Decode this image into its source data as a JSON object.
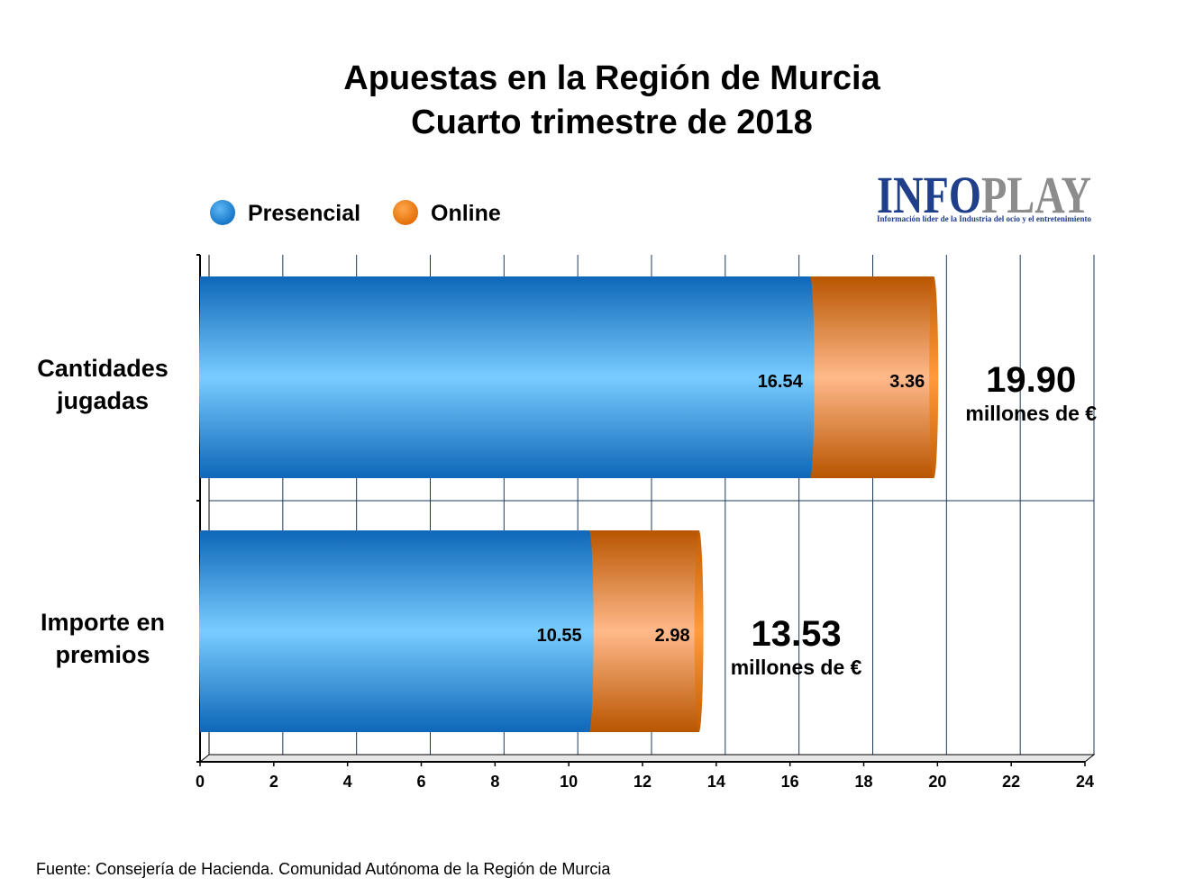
{
  "chart_data": {
    "type": "bar",
    "orientation": "horizontal",
    "stacked": true,
    "title": [
      "Apuestas en la Región de Murcia",
      "Cuarto trimestre de 2018"
    ],
    "categories": [
      "Cantidades jugadas",
      "Importe en premios"
    ],
    "category_lines": [
      [
        "Cantidades",
        "jugadas"
      ],
      [
        "Importe en",
        "premios"
      ]
    ],
    "series": [
      {
        "name": "Presencial",
        "values": [
          16.54,
          10.55
        ],
        "labels": [
          "16.54",
          "10.55"
        ],
        "color": "#1b86d6"
      },
      {
        "name": "Online",
        "values": [
          3.36,
          2.98
        ],
        "labels": [
          "3.36",
          "2.98"
        ],
        "color": "#f07a0a"
      }
    ],
    "totals": [
      {
        "value": "19.90",
        "unit": "millones de €"
      },
      {
        "value": "13.53",
        "unit": "millones de €"
      }
    ],
    "xlim": [
      0,
      24
    ],
    "xticks": [
      "0",
      "2",
      "4",
      "6",
      "8",
      "10",
      "12",
      "14",
      "16",
      "18",
      "20",
      "22",
      "24"
    ],
    "grid": true,
    "legend_position": "top-left",
    "xlabel": "",
    "ylabel": ""
  },
  "logo": {
    "text_a": "INFO",
    "text_b": "PLAY",
    "tagline": "Información líder de la Industria del ocio y el entretenimiento",
    "color_a": "#1f3f8a",
    "color_b": "#8c8c8c"
  },
  "source": "Fuente: Consejería de Hacienda. Comunidad Autónoma de la Región de Murcia"
}
